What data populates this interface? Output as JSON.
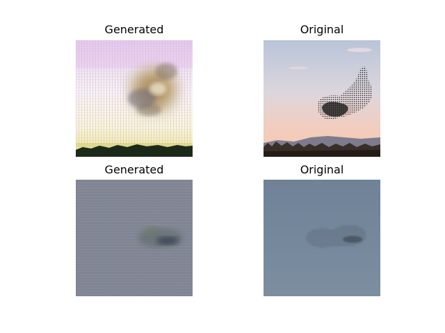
{
  "figure": {
    "panels": [
      {
        "title": "Generated",
        "subject": "bird-murmuration-generated-sunset"
      },
      {
        "title": "Original",
        "subject": "bird-murmuration-original-sunset"
      },
      {
        "title": "Generated",
        "subject": "bird-murmuration-generated-grey-sky"
      },
      {
        "title": "Original",
        "subject": "bird-murmuration-original-grey-sky"
      }
    ]
  }
}
